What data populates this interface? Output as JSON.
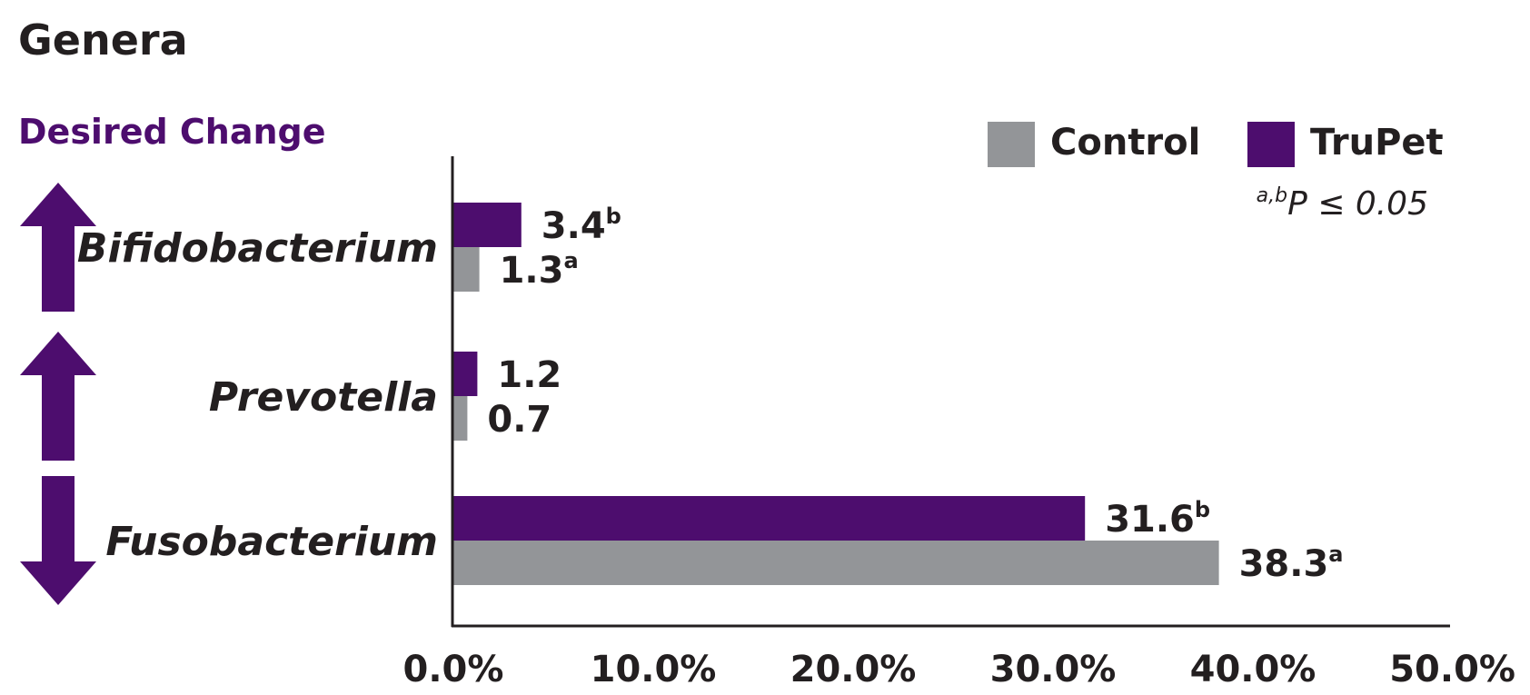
{
  "colors": {
    "control": "#939598",
    "trupet": "#4d0d6e",
    "text": "#231f20"
  },
  "chart_data": {
    "type": "bar",
    "orientation": "horizontal",
    "title": "Genera",
    "subtitle": "Desired Change",
    "categories": [
      "Bifidobacterium",
      "Prevotella",
      "Fusobacterium"
    ],
    "desired_change": [
      "up",
      "up",
      "down"
    ],
    "desired_change_icons": [
      "arrow-up-icon",
      "arrow-up-icon",
      "arrow-down-icon"
    ],
    "series": [
      {
        "name": "TruPet",
        "color": "#4d0d6e",
        "values": [
          3.4,
          1.2,
          31.6
        ],
        "labels": [
          "3.4",
          "1.2",
          "31.6"
        ],
        "superscripts": [
          "b",
          "",
          "b"
        ]
      },
      {
        "name": "Control",
        "color": "#939598",
        "values": [
          1.3,
          0.7,
          38.3
        ],
        "labels": [
          "1.3",
          "0.7",
          "38.3"
        ],
        "superscripts": [
          "a",
          "",
          "a"
        ]
      }
    ],
    "legend_order": [
      "Control",
      "TruPet"
    ],
    "legend_position": "top-right",
    "significance_note": {
      "superscript": "a,b",
      "text": "P ≤ 0.05"
    },
    "xlim": [
      0,
      50
    ],
    "xticks": [
      "0.0%",
      "10.0%",
      "20.0%",
      "30.0%",
      "40.0%",
      "50.0%"
    ],
    "grid": false
  }
}
